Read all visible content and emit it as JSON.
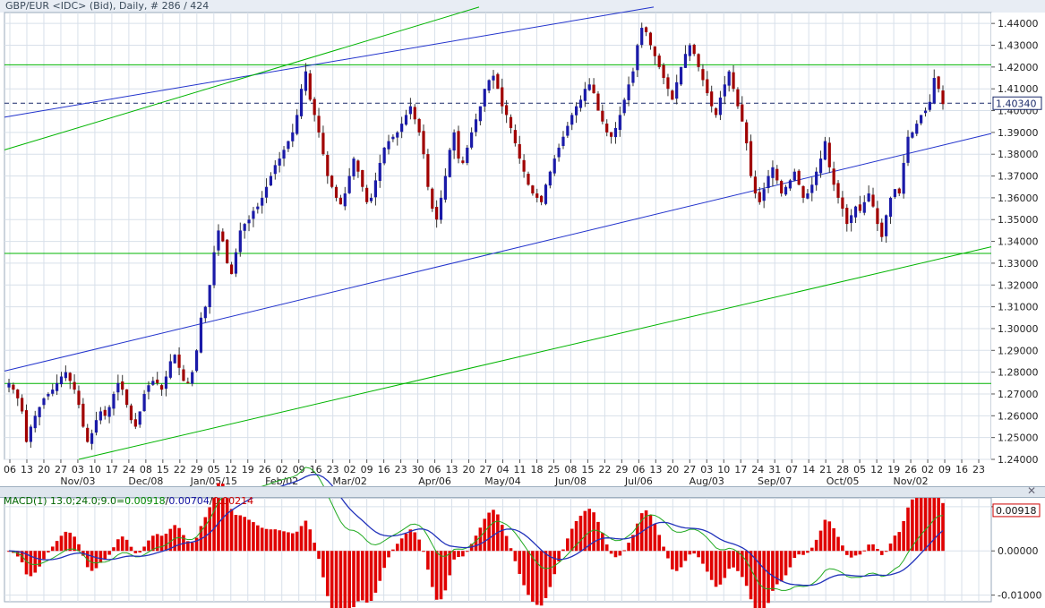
{
  "title": "GBP/EUR <IDC> (Bid), Daily, # 286 / 424",
  "macd": {
    "prefix": "MACD(1) 13.0;24.0;9.0=",
    "v1": "0.00918",
    "sep1": "/",
    "v2": "0.00704",
    "sep2": "/",
    "v3": "0.00214",
    "c1": "#008800",
    "c2": "#1010a0",
    "c3": "#cc0000"
  },
  "close_icon": "close-icon",
  "colors": {
    "bull": "#1a1aa8",
    "bear": "#a00000",
    "green_line": "#00b400",
    "blue_line": "#2233cc",
    "grid": "#d8e0ea",
    "macd_hist": "#e00000"
  },
  "chart_data": [
    {
      "type": "candlestick",
      "ylim": [
        1.24,
        1.445
      ],
      "yticks": [
        "1.24000",
        "1.25000",
        "1.26000",
        "1.27000",
        "1.28000",
        "1.29000",
        "1.30000",
        "1.31000",
        "1.32000",
        "1.33000",
        "1.34000",
        "1.35000",
        "1.36000",
        "1.37000",
        "1.38000",
        "1.39000",
        "1.40000",
        "1.41000",
        "1.42000",
        "1.43000",
        "1.44000"
      ],
      "last_price": "1.40340",
      "x_day_labels": [
        "06",
        "13",
        "20",
        "27",
        "03",
        "10",
        "17",
        "24",
        "08",
        "15",
        "22",
        "29",
        "05",
        "12",
        "19",
        "26",
        "02",
        "09",
        "16",
        "23",
        "02",
        "09",
        "16",
        "23",
        "30",
        "06",
        "13",
        "20",
        "27",
        "04",
        "11",
        "18",
        "25",
        "08",
        "15",
        "22",
        "29",
        "06",
        "13",
        "20",
        "27",
        "03",
        "10",
        "17",
        "24",
        "31",
        "07",
        "14",
        "21",
        "28",
        "05",
        "12",
        "19",
        "26",
        "02",
        "09",
        "16",
        "23"
      ],
      "x_month_labels": [
        "Nov/03",
        "Dec/08",
        "Jan/05/15",
        "Feb/02",
        "Mar/02",
        "Apr/06",
        "May/04",
        "Jun/08",
        "Jul/06",
        "Aug/03",
        "Sep/07",
        "Oct/05",
        "Nov/02"
      ],
      "close_series": [
        1.275,
        1.272,
        1.268,
        1.262,
        1.248,
        1.255,
        1.26,
        1.264,
        1.268,
        1.27,
        1.272,
        1.275,
        1.278,
        1.28,
        1.276,
        1.272,
        1.265,
        1.255,
        1.248,
        1.252,
        1.258,
        1.262,
        1.26,
        1.264,
        1.27,
        1.275,
        1.272,
        1.265,
        1.258,
        1.255,
        1.262,
        1.27,
        1.274,
        1.276,
        1.275,
        1.272,
        1.278,
        1.285,
        1.288,
        1.282,
        1.276,
        1.275,
        1.28,
        1.29,
        1.305,
        1.31,
        1.32,
        1.335,
        1.345,
        1.34,
        1.33,
        1.325,
        1.335,
        1.345,
        1.348,
        1.35,
        1.354,
        1.356,
        1.36,
        1.365,
        1.37,
        1.375,
        1.378,
        1.382,
        1.386,
        1.39,
        1.398,
        1.41,
        1.418,
        1.405,
        1.398,
        1.39,
        1.38,
        1.37,
        1.365,
        1.36,
        1.357,
        1.362,
        1.37,
        1.378,
        1.372,
        1.365,
        1.358,
        1.36,
        1.368,
        1.376,
        1.383,
        1.386,
        1.388,
        1.39,
        1.394,
        1.398,
        1.402,
        1.396,
        1.39,
        1.38,
        1.365,
        1.355,
        1.35,
        1.36,
        1.37,
        1.382,
        1.39,
        1.378,
        1.376,
        1.383,
        1.39,
        1.396,
        1.402,
        1.41,
        1.414,
        1.416,
        1.41,
        1.402,
        1.398,
        1.392,
        1.385,
        1.378,
        1.372,
        1.366,
        1.362,
        1.36,
        1.358,
        1.366,
        1.372,
        1.378,
        1.383,
        1.388,
        1.393,
        1.398,
        1.402,
        1.405,
        1.41,
        1.412,
        1.408,
        1.4,
        1.395,
        1.39,
        1.388,
        1.392,
        1.398,
        1.405,
        1.412,
        1.418,
        1.43,
        1.438,
        1.436,
        1.43,
        1.425,
        1.42,
        1.415,
        1.41,
        1.405,
        1.413,
        1.42,
        1.426,
        1.43,
        1.426,
        1.42,
        1.414,
        1.408,
        1.402,
        1.398,
        1.406,
        1.412,
        1.418,
        1.41,
        1.402,
        1.395,
        1.385,
        1.37,
        1.362,
        1.358,
        1.364,
        1.37,
        1.374,
        1.368,
        1.362,
        1.365,
        1.368,
        1.372,
        1.366,
        1.36,
        1.362,
        1.366,
        1.372,
        1.378,
        1.386,
        1.374,
        1.366,
        1.36,
        1.355,
        1.348,
        1.352,
        1.356,
        1.354,
        1.358,
        1.362,
        1.356,
        1.348,
        1.342,
        1.352,
        1.36,
        1.364,
        1.362,
        1.376,
        1.388,
        1.39,
        1.394,
        1.398,
        1.4,
        1.404,
        1.415,
        1.41,
        1.403
      ]
    },
    {
      "type": "line",
      "title": "MACD",
      "ylim": [
        -0.0115,
        0.012
      ],
      "yticks": [
        "0.01000",
        "0.00000",
        "-0.01000"
      ],
      "last_value": "0.00918"
    }
  ]
}
